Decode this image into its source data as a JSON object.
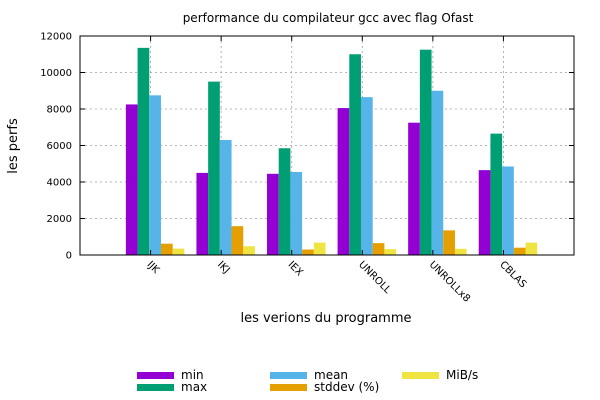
{
  "chart_data": {
    "type": "bar",
    "title": "performance du compilateur gcc avec flag Ofast",
    "xlabel": "les verions du programme",
    "ylabel": "les perfs",
    "ylim": [
      0,
      12000
    ],
    "yticks": [
      0,
      2000,
      4000,
      6000,
      8000,
      10000,
      12000
    ],
    "grid": true,
    "legend_position": "bottom",
    "categories": [
      "IJK",
      "IKJ",
      "IEX",
      "UNROLL",
      "UNROLLx8",
      "CBLAS"
    ],
    "series": [
      {
        "name": "min",
        "color": "#9400d3",
        "values": [
          8250,
          4500,
          4450,
          8050,
          7250,
          4650
        ]
      },
      {
        "name": "max",
        "color": "#009e73",
        "values": [
          11350,
          9500,
          5850,
          11000,
          11250,
          6650
        ]
      },
      {
        "name": "mean",
        "color": "#56b4e9",
        "values": [
          8750,
          6300,
          4550,
          8650,
          9000,
          4850
        ]
      },
      {
        "name": "stddev (%)",
        "color": "#e69f00",
        "values": [
          620,
          1580,
          300,
          650,
          1350,
          400
        ]
      },
      {
        "name": "MiB/s",
        "color": "#f0e442",
        "values": [
          350,
          480,
          680,
          320,
          340,
          680
        ]
      }
    ]
  }
}
